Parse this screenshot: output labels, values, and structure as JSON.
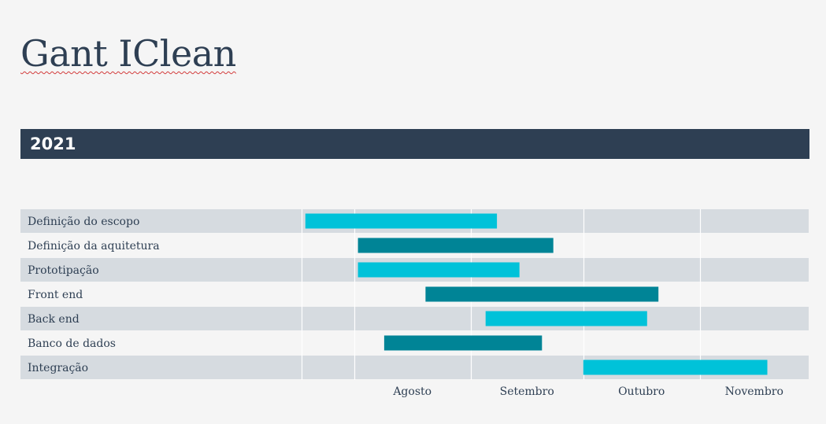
{
  "title": "Gant IClean",
  "year": "2021",
  "colors": {
    "background": "#f5f5f5",
    "header": "#2e3f53",
    "row_shaded": "#d6dbe0",
    "bar_light": "#00c2d9",
    "bar_dark": "#008496",
    "text": "#2e3f53"
  },
  "chart_data": {
    "type": "gantt",
    "axis_start": "2021-07-18",
    "axis_end": "2021-11-30",
    "month_ticks": [
      {
        "label": "Agosto",
        "date": "2021-08-01"
      },
      {
        "label": "Setembro",
        "date": "2021-09-01"
      },
      {
        "label": "Outubro",
        "date": "2021-10-01"
      },
      {
        "label": "Novembro",
        "date": "2021-11-01"
      }
    ],
    "tasks": [
      {
        "name": "Definição do escopo",
        "start": "2021-07-19",
        "end": "2021-09-08",
        "color": "light"
      },
      {
        "name": "Definição da aquitetura",
        "start": "2021-08-02",
        "end": "2021-09-23",
        "color": "dark"
      },
      {
        "name": "Prototipação",
        "start": "2021-08-02",
        "end": "2021-09-14",
        "color": "light"
      },
      {
        "name": "Front end",
        "start": "2021-08-20",
        "end": "2021-10-21",
        "color": "dark"
      },
      {
        "name": "Back end",
        "start": "2021-09-05",
        "end": "2021-10-18",
        "color": "light"
      },
      {
        "name": "Banco de dados",
        "start": "2021-08-09",
        "end": "2021-09-20",
        "color": "dark"
      },
      {
        "name": "Integração",
        "start": "2021-10-01",
        "end": "2021-11-19",
        "color": "light"
      }
    ],
    "title": "",
    "xlabel": "",
    "ylabel": "",
    "grid": true
  }
}
